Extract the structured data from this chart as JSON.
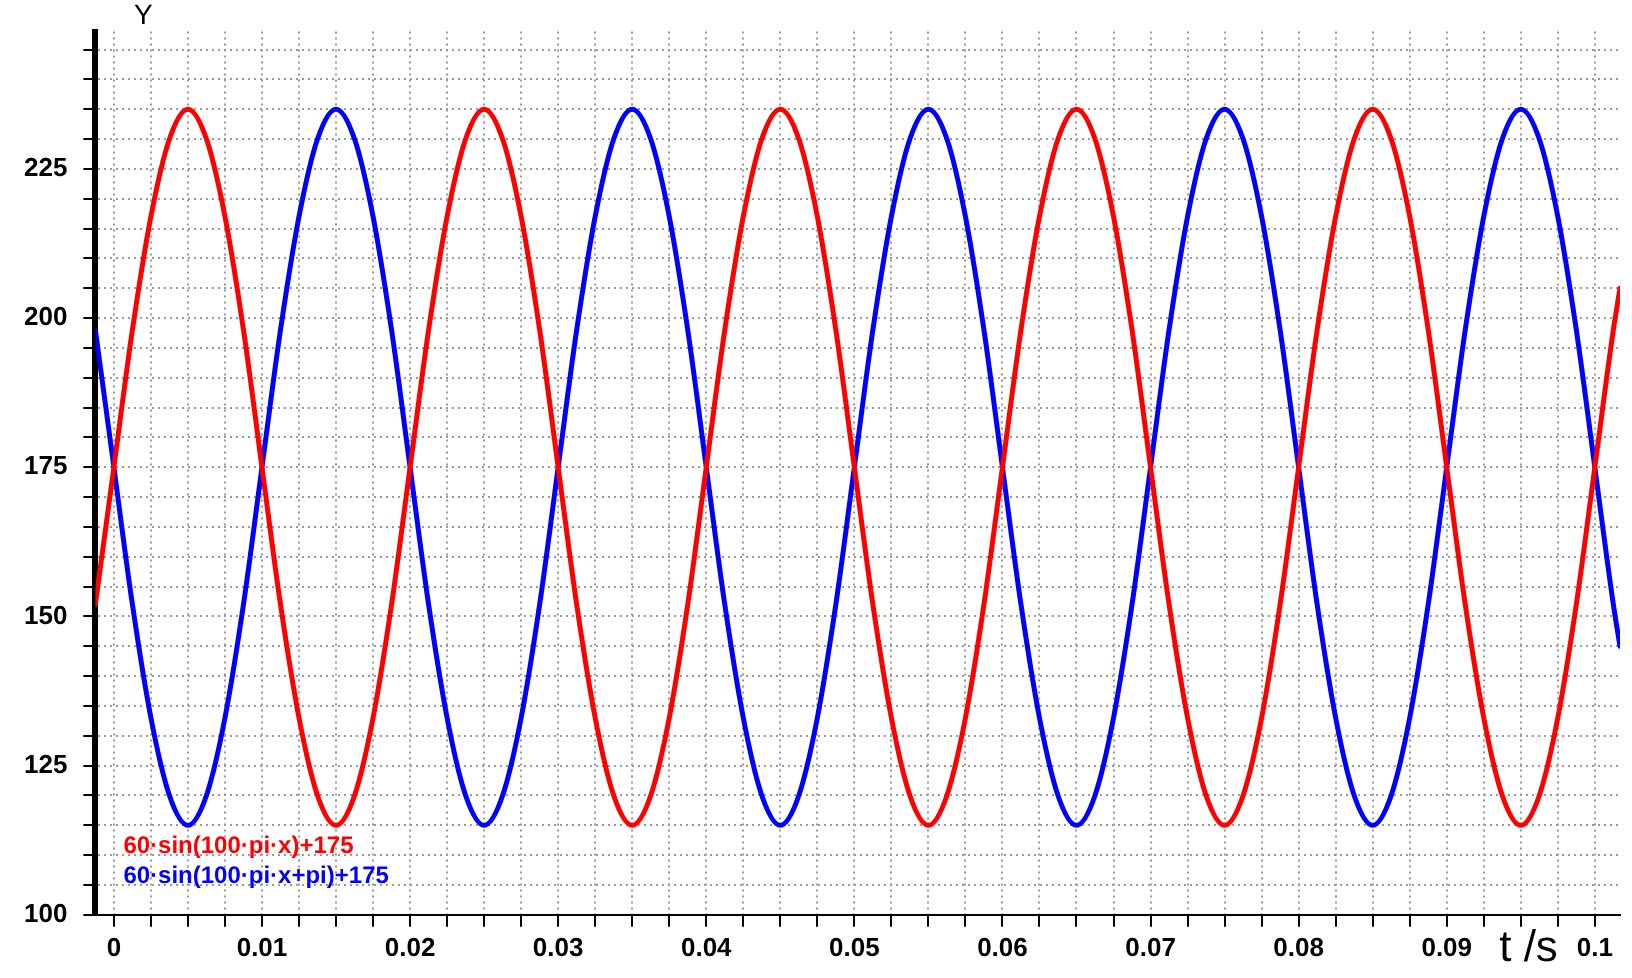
{
  "chart_data": {
    "type": "line",
    "xlabel": "t /s",
    "ylabel": "Y",
    "x": [
      -0.00125,
      0,
      0.00125,
      0.0025,
      0.00375,
      0.005,
      0.00625,
      0.0075,
      0.00875,
      0.01,
      0.01125,
      0.0125,
      0.01375,
      0.015,
      0.01625,
      0.0175,
      0.01875,
      0.02,
      0.02125,
      0.0225,
      0.02375,
      0.025,
      0.02625,
      0.0275,
      0.02875,
      0.03,
      0.03125,
      0.0325,
      0.03375,
      0.035,
      0.03625,
      0.0375,
      0.03875,
      0.04,
      0.04125,
      0.0425,
      0.04375,
      0.045,
      0.04625,
      0.0475,
      0.04875,
      0.05,
      0.05125,
      0.0525,
      0.05375,
      0.055,
      0.05625,
      0.0575,
      0.05875,
      0.06,
      0.06125,
      0.0625,
      0.06375,
      0.065,
      0.06625,
      0.0675,
      0.06875,
      0.07,
      0.07125,
      0.0725,
      0.07375,
      0.075,
      0.07625,
      0.0775,
      0.07875,
      0.08,
      0.08125,
      0.0825,
      0.08375,
      0.085,
      0.08625,
      0.0875,
      0.08875,
      0.09,
      0.09125,
      0.0925,
      0.09375,
      0.095,
      0.09625,
      0.0975,
      0.09875,
      0.1,
      0.10125,
      0.1017
    ],
    "series": [
      {
        "name": "60·sin(100·pi·x)+175",
        "color": "#ff0000",
        "values": [
          152,
          175,
          198,
          217,
          230,
          235,
          230,
          217,
          198,
          175,
          152,
          133,
          120,
          115,
          120,
          133,
          152,
          175,
          198,
          217,
          230,
          235,
          230,
          217,
          198,
          175,
          152,
          133,
          120,
          115,
          120,
          133,
          152,
          175,
          198,
          217,
          230,
          235,
          230,
          217,
          198,
          175,
          152,
          133,
          120,
          115,
          120,
          133,
          152,
          175,
          198,
          217,
          230,
          235,
          230,
          217,
          198,
          175,
          152,
          133,
          120,
          115,
          120,
          133,
          152,
          175,
          198,
          217,
          230,
          235,
          230,
          217,
          198,
          175,
          152,
          133,
          120,
          115,
          120,
          133,
          152,
          175,
          198,
          205
        ]
      },
      {
        "name": "60·sin(100·pi·x+pi)+175",
        "color": "#0000ff",
        "values": [
          198,
          175,
          152,
          133,
          120,
          115,
          120,
          133,
          152,
          175,
          198,
          217,
          230,
          235,
          230,
          217,
          198,
          175,
          152,
          133,
          120,
          115,
          120,
          133,
          152,
          175,
          198,
          217,
          230,
          235,
          230,
          217,
          198,
          175,
          152,
          133,
          120,
          115,
          120,
          133,
          152,
          175,
          198,
          217,
          230,
          235,
          230,
          217,
          198,
          175,
          152,
          133,
          120,
          115,
          120,
          133,
          152,
          175,
          198,
          217,
          230,
          235,
          230,
          217,
          198,
          175,
          152,
          133,
          120,
          115,
          120,
          133,
          152,
          175,
          198,
          217,
          230,
          235,
          230,
          217,
          198,
          175,
          152,
          145
        ]
      }
    ],
    "xlim": [
      -0.00125,
      0.1017
    ],
    "ylim": [
      100,
      248
    ],
    "xticks": [
      0,
      {
        "value": 0.0025,
        "label": null
      },
      {
        "value": 0.005,
        "label": null
      },
      {
        "value": 0.0075,
        "label": null
      },
      0.01,
      {
        "value": 0.0125,
        "label": null
      },
      {
        "value": 0.015,
        "label": null
      },
      {
        "value": 0.0175,
        "label": null
      },
      0.02,
      {
        "value": 0.0225,
        "label": null
      },
      {
        "value": 0.025,
        "label": null
      },
      {
        "value": 0.0275,
        "label": null
      },
      0.03,
      {
        "value": 0.0325,
        "label": null
      },
      {
        "value": 0.035,
        "label": null
      },
      {
        "value": 0.0375,
        "label": null
      },
      0.04,
      {
        "value": 0.0425,
        "label": null
      },
      {
        "value": 0.045,
        "label": null
      },
      {
        "value": 0.0475,
        "label": null
      },
      0.05,
      {
        "value": 0.0525,
        "label": null
      },
      {
        "value": 0.055,
        "label": null
      },
      {
        "value": 0.0575,
        "label": null
      },
      0.06,
      {
        "value": 0.0625,
        "label": null
      },
      {
        "value": 0.065,
        "label": null
      },
      {
        "value": 0.0675,
        "label": null
      },
      0.07,
      {
        "value": 0.0725,
        "label": null
      },
      {
        "value": 0.075,
        "label": null
      },
      {
        "value": 0.0775,
        "label": null
      },
      0.08,
      {
        "value": 0.0825,
        "label": null
      },
      {
        "value": 0.085,
        "label": null
      },
      {
        "value": 0.0875,
        "label": null
      },
      0.09,
      {
        "value": 0.0925,
        "label": null
      },
      {
        "value": 0.095,
        "label": null
      },
      {
        "value": 0.0975,
        "label": null
      },
      0.1
    ],
    "yticks": [
      100,
      {
        "value": 105,
        "label": null
      },
      {
        "value": 110,
        "label": null
      },
      {
        "value": 115,
        "label": null
      },
      {
        "value": 120,
        "label": null
      },
      125,
      {
        "value": 130,
        "label": null
      },
      {
        "value": 135,
        "label": null
      },
      {
        "value": 140,
        "label": null
      },
      {
        "value": 145,
        "label": null
      },
      150,
      {
        "value": 155,
        "label": null
      },
      {
        "value": 160,
        "label": null
      },
      {
        "value": 165,
        "label": null
      },
      {
        "value": 170,
        "label": null
      },
      175,
      {
        "value": 180,
        "label": null
      },
      {
        "value": 185,
        "label": null
      },
      {
        "value": 190,
        "label": null
      },
      {
        "value": 195,
        "label": null
      },
      200,
      {
        "value": 205,
        "label": null
      },
      {
        "value": 210,
        "label": null
      },
      {
        "value": 215,
        "label": null
      },
      {
        "value": 220,
        "label": null
      },
      225,
      {
        "value": 230,
        "label": null
      },
      {
        "value": 235,
        "label": null
      },
      {
        "value": 240,
        "label": null
      },
      {
        "value": 245,
        "label": null
      }
    ],
    "grid": true,
    "legend": "bottom left",
    "marker": "none",
    "line_style": "solid"
  }
}
